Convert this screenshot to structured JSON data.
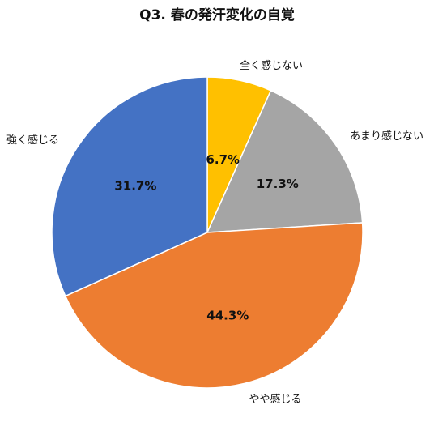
{
  "chart_data": {
    "type": "pie",
    "title": "Q3. 春の発汗変化の自覚",
    "start_angle": "12 o'clock",
    "direction": "clockwise",
    "slices": [
      {
        "label": "全く感じない",
        "value": 6.7,
        "value_label": "6.7%",
        "color": "#FFC000"
      },
      {
        "label": "あまり感じない",
        "value": 17.3,
        "value_label": "17.3%",
        "color": "#A5A5A5"
      },
      {
        "label": "やや感じる",
        "value": 44.3,
        "value_label": "44.3%",
        "color": "#ED7D31"
      },
      {
        "label": "強く感じる",
        "value": 31.7,
        "value_label": "31.7%",
        "color": "#4472C4"
      }
    ]
  }
}
